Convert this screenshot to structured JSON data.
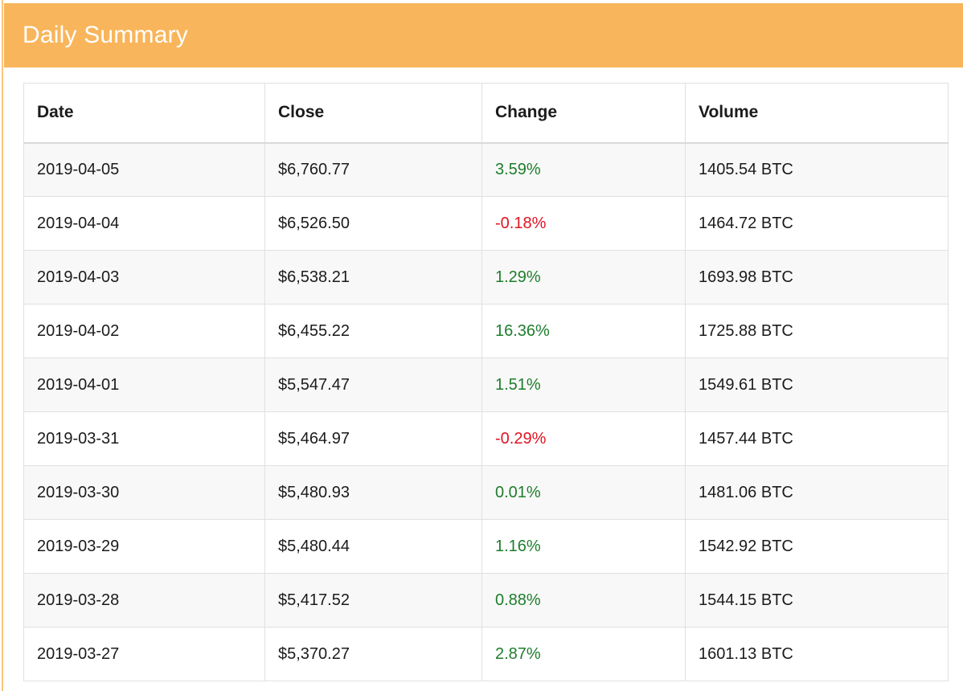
{
  "header": {
    "title": "Daily Summary"
  },
  "table": {
    "columns": [
      "Date",
      "Close",
      "Change",
      "Volume"
    ],
    "rows": [
      {
        "date": "2019-04-05",
        "close": "$6,760.77",
        "change": "3.59%",
        "volume": "1405.54 BTC"
      },
      {
        "date": "2019-04-04",
        "close": "$6,526.50",
        "change": "-0.18%",
        "volume": "1464.72 BTC"
      },
      {
        "date": "2019-04-03",
        "close": "$6,538.21",
        "change": "1.29%",
        "volume": "1693.98 BTC"
      },
      {
        "date": "2019-04-02",
        "close": "$6,455.22",
        "change": "16.36%",
        "volume": "1725.88 BTC"
      },
      {
        "date": "2019-04-01",
        "close": "$5,547.47",
        "change": "1.51%",
        "volume": "1549.61 BTC"
      },
      {
        "date": "2019-03-31",
        "close": "$5,464.97",
        "change": "-0.29%",
        "volume": "1457.44 BTC"
      },
      {
        "date": "2019-03-30",
        "close": "$5,480.93",
        "change": "0.01%",
        "volume": "1481.06 BTC"
      },
      {
        "date": "2019-03-29",
        "close": "$5,480.44",
        "change": "1.16%",
        "volume": "1542.92 BTC"
      },
      {
        "date": "2019-03-28",
        "close": "$5,417.52",
        "change": "0.88%",
        "volume": "1544.15 BTC"
      },
      {
        "date": "2019-03-27",
        "close": "$5,370.27",
        "change": "2.87%",
        "volume": "1601.13 BTC"
      }
    ]
  },
  "colors": {
    "accent_orange": "#f9b55b",
    "accent_orange_light": "#fbc57e",
    "heading_text": "#ffffff",
    "body_text": "#1b1b1b",
    "positive_green": "#1e7d2c",
    "negative_red": "#e01422",
    "row_stripe": "#f8f8f8",
    "table_border": "#e0e0e0"
  }
}
